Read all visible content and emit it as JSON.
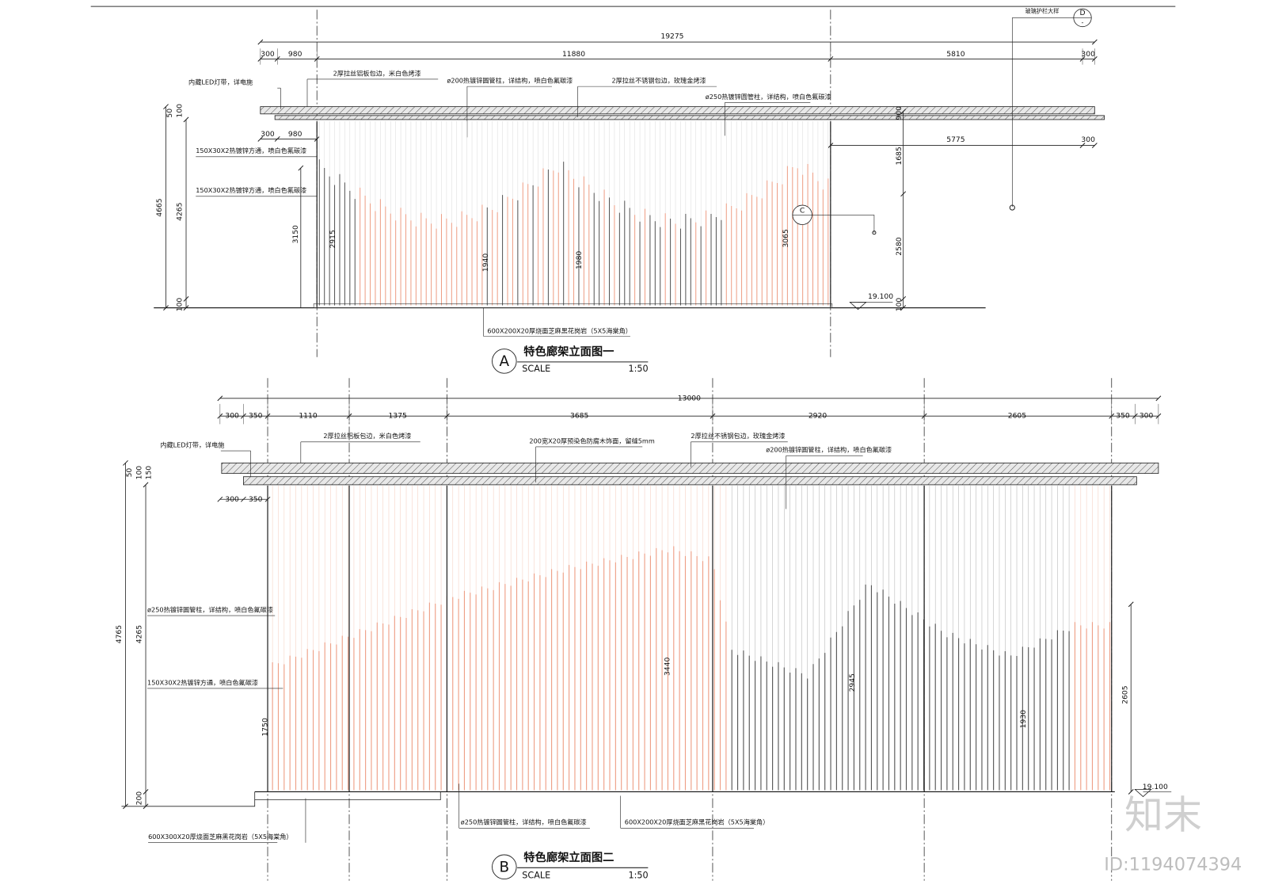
{
  "elevation_a": {
    "detail_callout": {
      "note": "玻璃护栏大样",
      "id": "D",
      "sheet": "-"
    },
    "dimensions_top": {
      "overall": "19275",
      "segments": [
        "300",
        "980",
        "11880",
        "5810",
        "300"
      ]
    },
    "annotations": [
      "内藏LED灯带，详电施",
      "2厚拉丝铝板包边，米白色烤漆",
      "ø200热镀锌圆管柱，详结构，喷白色氟碳漆",
      "2厚拉丝不锈钢包边，玫瑰金烤漆",
      "ø250热镀锌圆管柱，详结构，喷白色氟碳漆"
    ],
    "dimensions_second": [
      "300",
      "980",
      "5775",
      "300"
    ],
    "side_annotations": [
      "150X30X2热镀锌方通，喷白色氟碳漆",
      "150X30X2热镀锌方通，喷白色氟碳漆"
    ],
    "vertical_dimensions": [
      "4665",
      "4265",
      "50",
      "100",
      "3150",
      "2915",
      "1940",
      "1980",
      "3065",
      "900",
      "1685",
      "2580",
      "100",
      "100"
    ],
    "section_marker": "C",
    "elevation_mark": "19.100",
    "base_annotation": "600X200X20厚烧面芝麻黑花岗岩（5X5海棠角）",
    "title": {
      "id": "A",
      "name": "特色廊架立面图一",
      "scale_label": "SCALE",
      "scale": "1:50"
    }
  },
  "elevation_b": {
    "dimensions_top": {
      "overall": "13000",
      "segments": [
        "300",
        "350",
        "1110",
        "1375",
        "3685",
        "2920",
        "2605",
        "350",
        "300"
      ]
    },
    "annotations": [
      "内藏LED灯带，详电施",
      "2厚拉丝铝板包边，米白色烤漆",
      "200宽X20厚预染色防腐木饰面，留缝5mm",
      "2厚拉丝不锈钢包边，玫瑰金烤漆",
      "ø200热镀锌圆管柱，详结构，喷白色氟碳漆"
    ],
    "dimensions_second": [
      "300",
      "350"
    ],
    "side_annotations": [
      "ø250热镀锌圆管柱，详结构，喷白色氟碳漆",
      "150X30X2热镀锌方通，喷白色氟碳漆"
    ],
    "vertical_dimensions": [
      "4765",
      "4265",
      "50",
      "100",
      "150",
      "1750",
      "3440",
      "2945",
      "1930",
      "2605",
      "200"
    ],
    "elevation_mark": "19.100",
    "base_annotations": [
      "600X300X20厚烧面芝麻黑花岗岩（5X5海棠角）",
      "ø250热镀锌圆管柱，详结构，喷白色氟碳漆",
      "600X200X20厚烧面芝麻黑花岗岩（5X5海棠角）"
    ],
    "title": {
      "id": "B",
      "name": "特色廊架立面图二",
      "scale_label": "SCALE",
      "scale": "1:50"
    }
  },
  "watermark": {
    "brand": "知末",
    "id": "ID:1194074394"
  }
}
